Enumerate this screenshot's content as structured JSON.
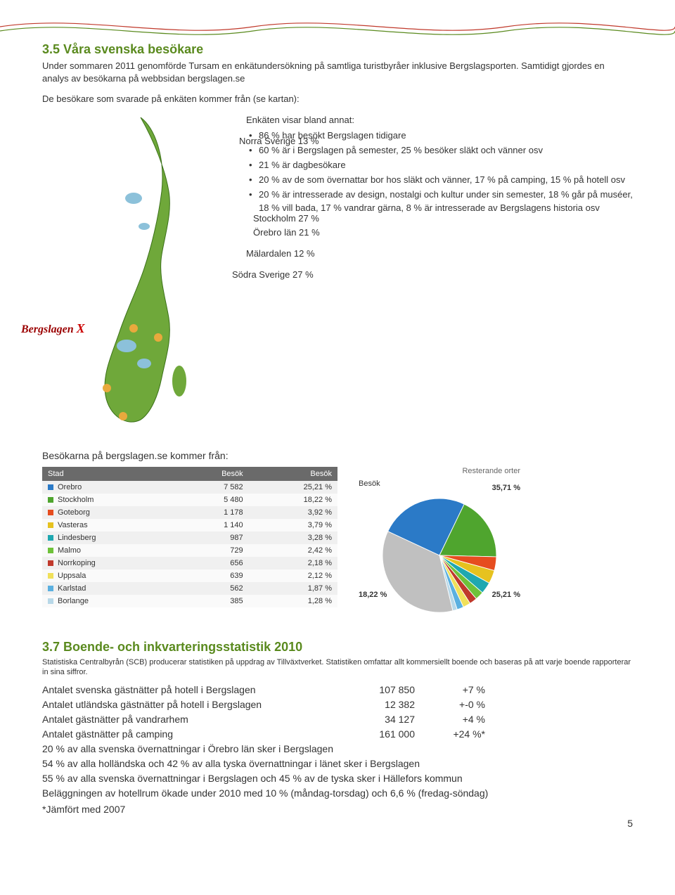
{
  "heading35": "3.5 Våra svenska besökare",
  "intro": "Under sommaren 2011 genomförde Tursam en enkätundersökning på samtliga turistbyråer inklusive Bergslagsporten. Samtidigt gjordes en analys av besökarna på webbsidan bergslagen.se",
  "kartan_intro": "De besökare som svarade på enkäten kommer från (se kartan):",
  "map": {
    "norra": "Norra Sverige 13 %",
    "stockholm": "Stockholm 27 %",
    "orebro": "Örebro län 21 %",
    "malardalen": "Mälardalen 12 %",
    "sodra": "Södra Sverige 27 %",
    "bergslagen": "Bergslagen"
  },
  "enkat_title": "Enkäten visar bland annat:",
  "enkat_items": [
    "86 % har besökt Bergslagen tidigare",
    "60 % är i Bergslagen på semester, 25 % besöker släkt och vänner osv",
    "21 % är dagbesökare",
    "20 % av de som övernattar bor hos släkt och vänner, 17 % på camping, 15 % på hotell osv",
    "20 % är intresserade av design, nostalgi och kultur under sin semester, 18 % går på muséer, 18 % vill bada, 17 % vandrar gärna, 8 % är intresserade av Bergslagens historia osv"
  ],
  "table_title": "Besökarna på bergslagen.se kommer från:",
  "table_rest": "Resterande orter",
  "table_headers": {
    "stad": "Stad",
    "besok1": "Besök",
    "besok2": "Besök",
    "besok3": "Besök"
  },
  "cities": [
    {
      "name": "Orebro",
      "visits": "7 582",
      "pct": "25,21 %",
      "color": "#2b7ac7"
    },
    {
      "name": "Stockholm",
      "visits": "5 480",
      "pct": "18,22 %",
      "color": "#4fa52e"
    },
    {
      "name": "Goteborg",
      "visits": "1 178",
      "pct": "3,92 %",
      "color": "#e64d1f"
    },
    {
      "name": "Vasteras",
      "visits": "1 140",
      "pct": "3,79 %",
      "color": "#e6c21f"
    },
    {
      "name": "Lindesberg",
      "visits": "987",
      "pct": "3,28 %",
      "color": "#1fa8b0"
    },
    {
      "name": "Malmo",
      "visits": "729",
      "pct": "2,42 %",
      "color": "#6ec23a"
    },
    {
      "name": "Norrkoping",
      "visits": "656",
      "pct": "2,18 %",
      "color": "#c0392b"
    },
    {
      "name": "Uppsala",
      "visits": "639",
      "pct": "2,12 %",
      "color": "#f0e05a"
    },
    {
      "name": "Karlstad",
      "visits": "562",
      "pct": "1,87 %",
      "color": "#5bb0e0"
    },
    {
      "name": "Borlange",
      "visits": "385",
      "pct": "1,28 %",
      "color": "#b8d8e8"
    }
  ],
  "pie": {
    "labels": {
      "top": "35,71 %",
      "left": "18,22 %",
      "right": "25,21 %"
    },
    "rest_color": "#c0c0c0"
  },
  "heading37": "3.7 Boende- och inkvarteringsstatistik 2010",
  "stats_note": "Statistiska Centralbyrån (SCB) producerar statistiken på uppdrag av Tillväxtverket. Statistiken omfattar allt kommersiellt boende och baseras på att varje boende rapporterar in sina siffror.",
  "stats_rows": [
    {
      "a": "Antalet svenska gästnätter på hotell i Bergslagen",
      "b": "107 850",
      "c": "+7 %"
    },
    {
      "a": "Antalet utländska gästnätter på hotell i Bergslagen",
      "b": "12 382",
      "c": "+-0 %"
    },
    {
      "a": "Antalet gästnätter på vandrarhem",
      "b": "34 127",
      "c": "+4 %"
    },
    {
      "a": "Antalet gästnätter på camping",
      "b": "161 000",
      "c": "+24 %*"
    }
  ],
  "stats_lines": [
    "20 % av alla svenska övernattningar i Örebro län sker i Bergslagen",
    "54 % av alla holländska och 42 % av alla tyska övernattningar i länet sker i Bergslagen",
    "55 % av alla svenska övernattningar i Bergslagen och 45 % av de tyska sker i Hällefors kommun",
    "Beläggningen av hotellrum ökade under 2010 med 10 % (måndag-torsdag) och 6,6 % (fredag-söndag)"
  ],
  "stats_foot": "*Jämfört med 2007",
  "pagenum": "5"
}
